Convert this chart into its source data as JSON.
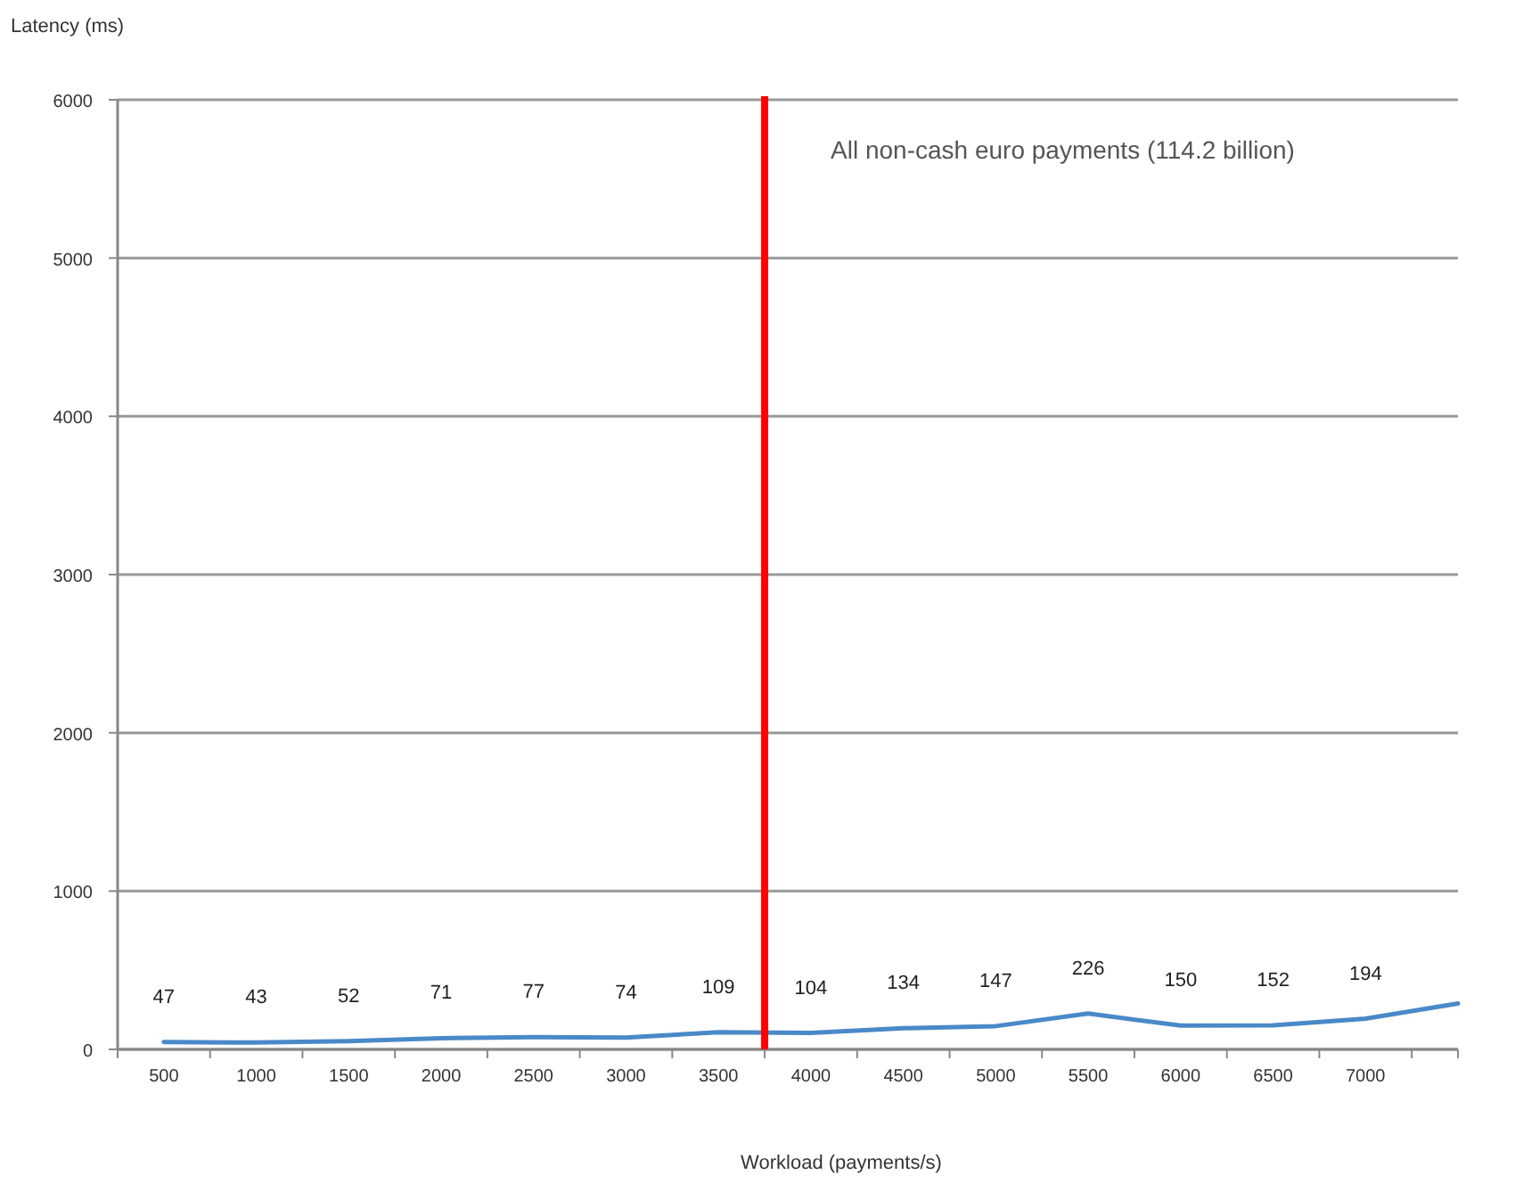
{
  "chart_data": {
    "type": "line",
    "xlabel": "Workload (payments/s)",
    "ylabel": "Latency (ms)",
    "x": [
      500,
      1000,
      1500,
      2000,
      2500,
      3000,
      3500,
      4000,
      4500,
      5000,
      5500,
      6000,
      6500,
      7000,
      7500
    ],
    "series": [
      {
        "color": "#4a89c8",
        "values": [
          47,
          43,
          52,
          71,
          77,
          74,
          109,
          104,
          134,
          147,
          226,
          150,
          152,
          194,
          290
        ],
        "value_labels": [
          "47",
          "43",
          "52",
          "71",
          "77",
          "74",
          "109",
          "104",
          "134",
          "147",
          "226",
          "150",
          "152",
          "194",
          null
        ]
      }
    ],
    "xlim": [
      250,
      7500
    ],
    "xticks": [
      {
        "value": 250,
        "label": null
      },
      {
        "value": 500,
        "label": "500"
      },
      {
        "value": 750,
        "label": null
      },
      {
        "value": 1000,
        "label": "1000"
      },
      {
        "value": 1250,
        "label": null
      },
      {
        "value": 1500,
        "label": "1500"
      },
      {
        "value": 1750,
        "label": null
      },
      {
        "value": 2000,
        "label": "2000"
      },
      {
        "value": 2250,
        "label": null
      },
      {
        "value": 2500,
        "label": "2500"
      },
      {
        "value": 2750,
        "label": null
      },
      {
        "value": 3000,
        "label": "3000"
      },
      {
        "value": 3250,
        "label": null
      },
      {
        "value": 3500,
        "label": "3500"
      },
      {
        "value": 3750,
        "label": null
      },
      {
        "value": 4000,
        "label": "4000"
      },
      {
        "value": 4250,
        "label": null
      },
      {
        "value": 4500,
        "label": "4500"
      },
      {
        "value": 4750,
        "label": null
      },
      {
        "value": 5000,
        "label": "5000"
      },
      {
        "value": 5250,
        "label": null
      },
      {
        "value": 5500,
        "label": "5500"
      },
      {
        "value": 5750,
        "label": null
      },
      {
        "value": 6000,
        "label": "6000"
      },
      {
        "value": 6250,
        "label": null
      },
      {
        "value": 6500,
        "label": "6500"
      },
      {
        "value": 6750,
        "label": null
      },
      {
        "value": 7000,
        "label": "7000"
      },
      {
        "value": 7250,
        "label": null
      },
      {
        "value": 7500,
        "label": null
      }
    ],
    "ylim": [
      0,
      6000
    ],
    "yticks": [
      0,
      1000,
      2000,
      3000,
      4000,
      5000,
      6000
    ],
    "grid": "y",
    "marker": "none",
    "line_style": "solid",
    "ref_lines": [
      {
        "axis": "x",
        "value": 3750,
        "label": "All non-cash euro payments (114.2 billion)",
        "color": "#ff0000",
        "line_style": "solid"
      }
    ]
  }
}
